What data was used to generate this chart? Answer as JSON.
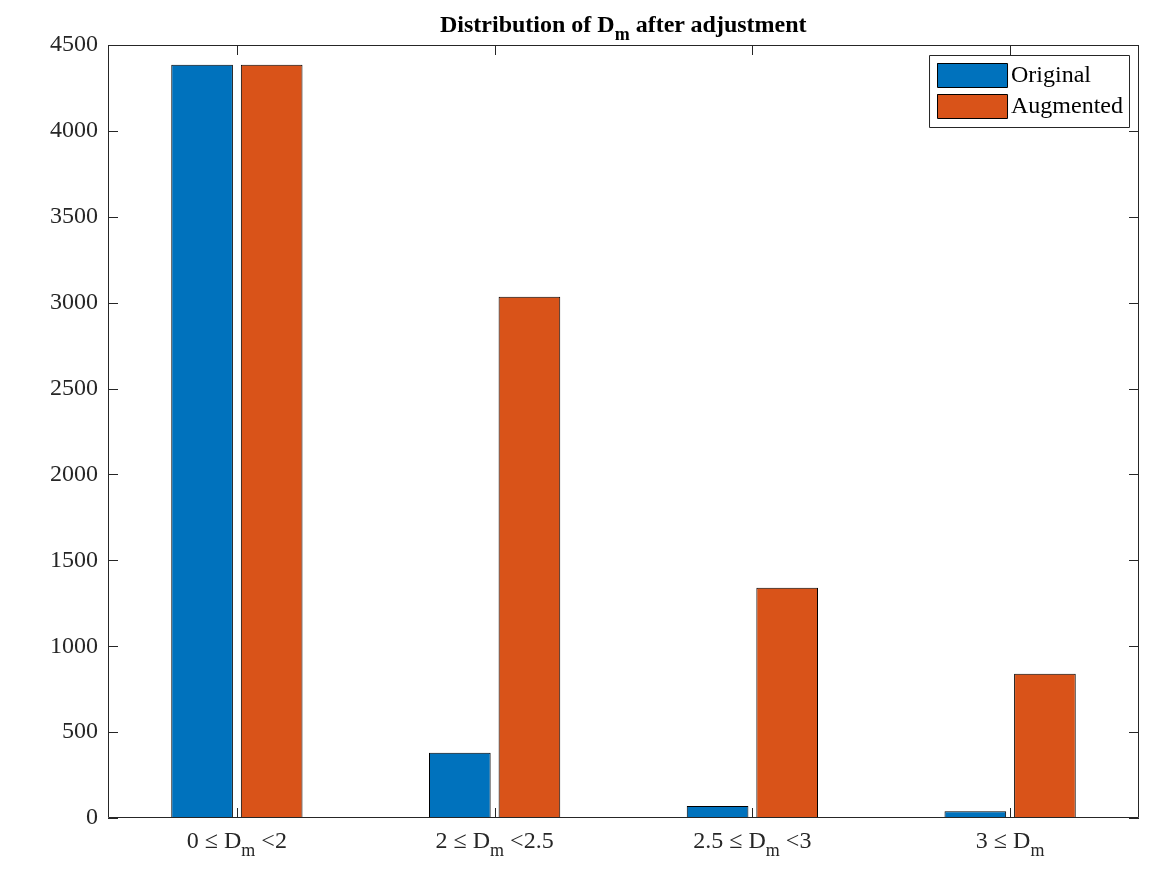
{
  "chart_data": {
    "type": "bar",
    "title": "Distribution of D$_{m}$ after adjustment",
    "categories": [
      "0 ≤ D$_{m}$ <2",
      "2 ≤ D$_{m}$ <2.5",
      "2.5 ≤ D$_{m}$ <3",
      "3 ≤ D$_{m}$"
    ],
    "series": [
      {
        "name": "Original",
        "color": "#0072bd",
        "values": [
          4385,
          380,
          70,
          40
        ]
      },
      {
        "name": "Augmented",
        "color": "#d95319",
        "values": [
          4385,
          3035,
          1340,
          840
        ]
      }
    ],
    "ylim": [
      0,
      4500
    ],
    "yticks": [
      0,
      500,
      1000,
      1500,
      2000,
      2500,
      3000,
      3500,
      4000,
      4500
    ],
    "grid": false,
    "legend": "top right"
  }
}
